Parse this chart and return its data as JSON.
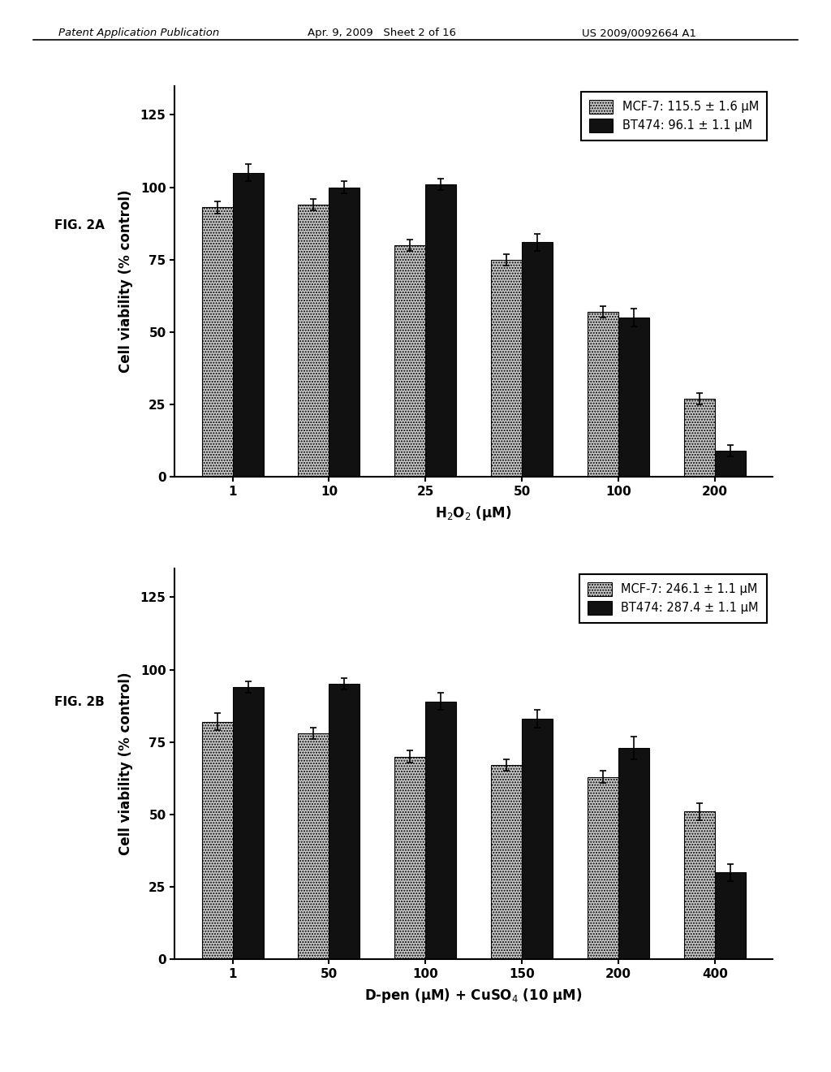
{
  "fig2a": {
    "categories": [
      "1",
      "10",
      "25",
      "50",
      "100",
      "200"
    ],
    "mcf7_values": [
      93,
      94,
      80,
      75,
      57,
      27
    ],
    "mcf7_errors": [
      2,
      2,
      2,
      2,
      2,
      2
    ],
    "bt474_values": [
      105,
      100,
      101,
      81,
      55,
      9
    ],
    "bt474_errors": [
      3,
      2,
      2,
      3,
      3,
      2
    ],
    "ylabel": "Cell viability (% control)",
    "xlabel": "H$_2$O$_2$ (μM)",
    "legend_mcf7": "MCF-7: 115.5 ± 1.6 μM",
    "legend_bt474": "BT474: 96.1 ± 1.1 μM",
    "ylim": [
      0,
      135
    ],
    "yticks": [
      0,
      25,
      50,
      75,
      100,
      125
    ],
    "fig_label": "FIG. 2A"
  },
  "fig2b": {
    "categories": [
      "1",
      "50",
      "100",
      "150",
      "200",
      "400"
    ],
    "mcf7_values": [
      82,
      78,
      70,
      67,
      63,
      51
    ],
    "mcf7_errors": [
      3,
      2,
      2,
      2,
      2,
      3
    ],
    "bt474_values": [
      94,
      95,
      89,
      83,
      73,
      30
    ],
    "bt474_errors": [
      2,
      2,
      3,
      3,
      4,
      3
    ],
    "ylabel": "Cell viability (% control)",
    "xlabel": "D-pen (μM) + CuSO$_4$ (10 μM)",
    "legend_mcf7": "MCF-7: 246.1 ± 1.1 μM",
    "legend_bt474": "BT474: 287.4 ± 1.1 μM",
    "ylim": [
      0,
      135
    ],
    "yticks": [
      0,
      25,
      50,
      75,
      100,
      125
    ],
    "fig_label": "FIG. 2B"
  },
  "mcf7_color": "#c8c8c8",
  "bt474_color": "#111111",
  "mcf7_hatch": ".....",
  "background_color": "#ffffff",
  "header_left": "Patent Application Publication",
  "header_center": "Apr. 9, 2009   Sheet 2 of 16",
  "header_right": "US 2009/0092664 A1"
}
